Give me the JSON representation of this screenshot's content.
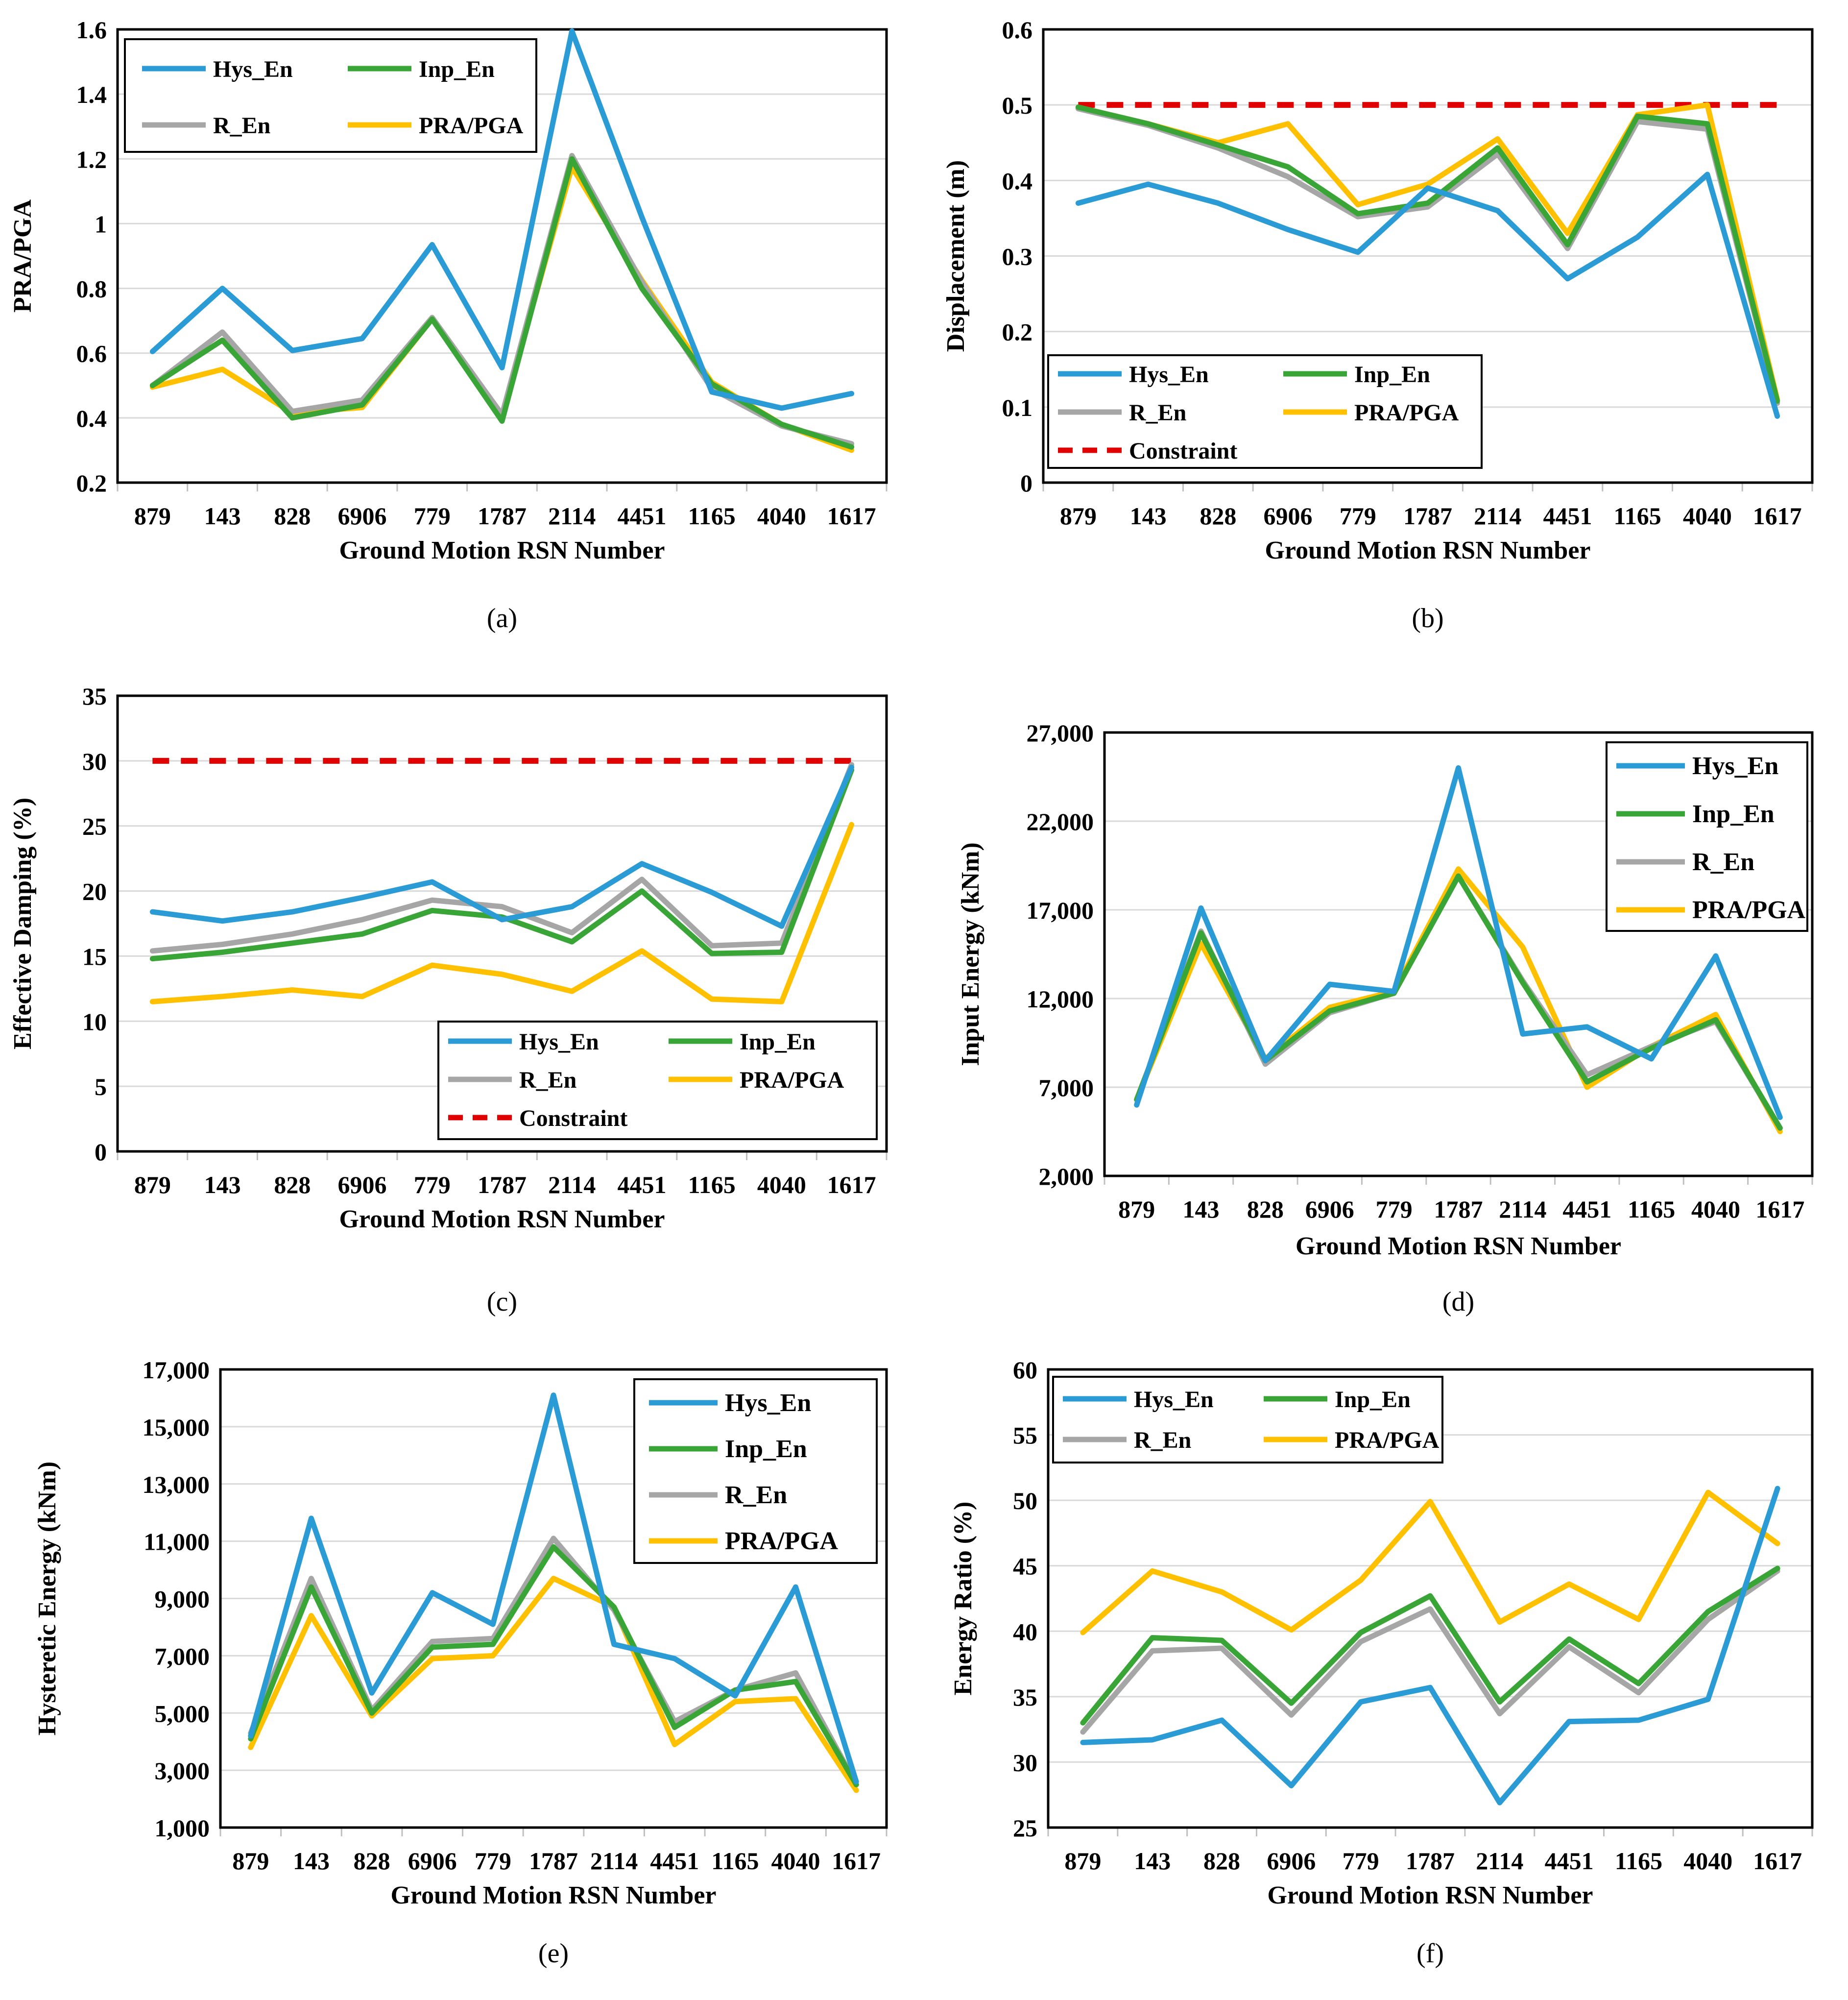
{
  "figure": {
    "categories": [
      "879",
      "143",
      "828",
      "6906",
      "779",
      "1787",
      "2114",
      "4451",
      "1165",
      "4040",
      "1617"
    ],
    "xlabel": "Ground Motion RSN Number",
    "colors": {
      "Hys_En": "#2b9bd6",
      "Inp_En": "#3aa537",
      "R_En": "#a6a6a6",
      "PRA/PGA": "#ffc000",
      "Constraint": "#e00000"
    },
    "legend_names": [
      "Hys_En",
      "Inp_En",
      "R_En",
      "PRA/PGA",
      "Constraint"
    ]
  },
  "chart_data": [
    {
      "panel": "(a)",
      "type": "line",
      "ylabel": "PRA/PGA",
      "ylim": [
        0.2,
        1.6
      ],
      "yticks": [
        0.2,
        0.4,
        0.6,
        0.8,
        1,
        1.2,
        1.4,
        1.6
      ],
      "ytick_labels": [
        "0.2",
        "0.4",
        "0.6",
        "0.8",
        "1",
        "1.2",
        "1.4",
        "1.6"
      ],
      "legend_position": "top-left",
      "series": [
        {
          "name": "Hys_En",
          "values": [
            0.605,
            0.8,
            0.608,
            0.645,
            0.935,
            0.555,
            1.595,
            1.02,
            0.48,
            0.43,
            0.475
          ]
        },
        {
          "name": "Inp_En",
          "values": [
            0.5,
            0.64,
            0.4,
            0.44,
            0.705,
            0.39,
            1.2,
            0.8,
            0.505,
            0.38,
            0.31
          ]
        },
        {
          "name": "R_En",
          "values": [
            0.5,
            0.665,
            0.42,
            0.455,
            0.71,
            0.41,
            1.21,
            0.82,
            0.49,
            0.375,
            0.32
          ]
        },
        {
          "name": "PRA/PGA",
          "values": [
            0.495,
            0.55,
            0.415,
            0.432,
            0.706,
            0.41,
            1.175,
            0.825,
            0.51,
            0.38,
            0.3
          ]
        }
      ]
    },
    {
      "panel": "(b)",
      "type": "line",
      "ylabel": "Displacement (m)",
      "ylim": [
        0,
        0.6
      ],
      "yticks": [
        0,
        0.1,
        0.2,
        0.3,
        0.4,
        0.5,
        0.6
      ],
      "ytick_labels": [
        "0",
        "0.1",
        "0.2",
        "0.3",
        "0.4",
        "0.5",
        "0.6"
      ],
      "legend_position": "bottom-left",
      "constraint": 0.5,
      "series": [
        {
          "name": "Hys_En",
          "values": [
            0.37,
            0.395,
            0.37,
            0.335,
            0.305,
            0.39,
            0.36,
            0.27,
            0.325,
            0.408,
            0.088
          ]
        },
        {
          "name": "Inp_En",
          "values": [
            0.497,
            0.475,
            0.447,
            0.418,
            0.356,
            0.37,
            0.443,
            0.315,
            0.485,
            0.475,
            0.108
          ]
        },
        {
          "name": "R_En",
          "values": [
            0.495,
            0.473,
            0.443,
            0.405,
            0.352,
            0.365,
            0.435,
            0.31,
            0.478,
            0.468,
            0.105
          ]
        },
        {
          "name": "PRA/PGA",
          "values": [
            0.497,
            0.475,
            0.45,
            0.475,
            0.368,
            0.395,
            0.455,
            0.33,
            0.487,
            0.5,
            0.11
          ]
        }
      ]
    },
    {
      "panel": "(c)",
      "type": "line",
      "ylabel": "Effective Damping (%)",
      "ylim": [
        0,
        35
      ],
      "yticks": [
        0,
        5,
        10,
        15,
        20,
        25,
        30,
        35
      ],
      "ytick_labels": [
        "0",
        "5",
        "10",
        "15",
        "20",
        "25",
        "30",
        "35"
      ],
      "legend_position": "bottom-right",
      "constraint": 30,
      "series": [
        {
          "name": "Hys_En",
          "values": [
            18.4,
            17.7,
            18.4,
            19.5,
            20.7,
            17.8,
            18.8,
            22.1,
            19.9,
            17.3,
            29.5
          ]
        },
        {
          "name": "Inp_En",
          "values": [
            14.8,
            15.3,
            16.0,
            16.7,
            18.5,
            18.0,
            16.1,
            20.0,
            15.2,
            15.3,
            29.3
          ]
        },
        {
          "name": "R_En",
          "values": [
            15.4,
            15.9,
            16.7,
            17.8,
            19.3,
            18.8,
            16.8,
            20.9,
            15.8,
            16.0,
            29.7
          ]
        },
        {
          "name": "PRA/PGA",
          "values": [
            11.5,
            11.9,
            12.4,
            11.9,
            14.3,
            13.6,
            12.3,
            15.4,
            11.7,
            11.5,
            25.1
          ]
        }
      ]
    },
    {
      "panel": "(d)",
      "type": "line",
      "ylabel": "Input Energy (kNm)",
      "ylim": [
        2000,
        27000
      ],
      "yticks": [
        2000,
        7000,
        12000,
        17000,
        22000,
        27000
      ],
      "ytick_labels": [
        "2,000",
        "7,000",
        "12,000",
        "17,000",
        "22,000",
        "27,000"
      ],
      "legend_position": "top-right",
      "series": [
        {
          "name": "Hys_En",
          "values": [
            6000,
            17100,
            8500,
            12800,
            12400,
            25000,
            10000,
            10400,
            8600,
            14400,
            5300
          ]
        },
        {
          "name": "Inp_En",
          "values": [
            6300,
            15700,
            8500,
            11300,
            12300,
            18900,
            12900,
            7300,
            9200,
            10800,
            4700
          ]
        },
        {
          "name": "R_En",
          "values": [
            6300,
            15800,
            8300,
            11200,
            12300,
            18900,
            13000,
            7700,
            9300,
            10700,
            4700
          ]
        },
        {
          "name": "PRA/PGA",
          "values": [
            6300,
            15100,
            8600,
            11500,
            12400,
            19300,
            14900,
            7000,
            9300,
            11100,
            4500
          ]
        }
      ]
    },
    {
      "panel": "(e)",
      "type": "line",
      "ylabel": "Hysteretic Energy (kNm)",
      "ylim": [
        1000,
        17000
      ],
      "yticks": [
        1000,
        3000,
        5000,
        7000,
        9000,
        11000,
        13000,
        15000,
        17000
      ],
      "ytick_labels": [
        "1,000",
        "3,000",
        "5,000",
        "7,000",
        "9,000",
        "11,000",
        "13,000",
        "15,000",
        "17,000"
      ],
      "legend_position": "top-right",
      "series": [
        {
          "name": "Hys_En",
          "values": [
            4200,
            11800,
            5700,
            9200,
            8100,
            16100,
            7400,
            6900,
            5600,
            9400,
            2600
          ]
        },
        {
          "name": "Inp_En",
          "values": [
            4100,
            9400,
            5000,
            7300,
            7400,
            10800,
            8700,
            4500,
            5800,
            6100,
            2500
          ]
        },
        {
          "name": "R_En",
          "values": [
            4300,
            9700,
            5100,
            7500,
            7600,
            11100,
            8600,
            4700,
            5800,
            6400,
            2500
          ]
        },
        {
          "name": "PRA/PGA",
          "values": [
            3800,
            8400,
            4900,
            6900,
            7000,
            9700,
            8700,
            3900,
            5400,
            5500,
            2300
          ]
        }
      ]
    },
    {
      "panel": "(f)",
      "type": "line",
      "ylabel": "Energy Ratio (%)",
      "ylim": [
        25,
        60
      ],
      "yticks": [
        25,
        30,
        35,
        40,
        45,
        50,
        55,
        60
      ],
      "ytick_labels": [
        "25",
        "30",
        "35",
        "40",
        "45",
        "50",
        "55",
        "60"
      ],
      "legend_position": "top-left",
      "series": [
        {
          "name": "Hys_En",
          "values": [
            31.5,
            31.7,
            33.2,
            28.2,
            34.6,
            35.7,
            26.9,
            33.1,
            33.2,
            34.8,
            50.9
          ]
        },
        {
          "name": "Inp_En",
          "values": [
            33.0,
            39.5,
            39.3,
            34.5,
            39.9,
            42.7,
            34.6,
            39.4,
            36.0,
            41.5,
            44.8
          ]
        },
        {
          "name": "R_En",
          "values": [
            32.3,
            38.5,
            38.7,
            33.6,
            39.2,
            41.7,
            33.7,
            38.8,
            35.3,
            40.9,
            44.6
          ]
        },
        {
          "name": "PRA/PGA",
          "values": [
            39.9,
            44.6,
            43.0,
            40.1,
            43.9,
            49.9,
            40.7,
            43.6,
            40.9,
            50.6,
            46.7
          ]
        }
      ]
    }
  ]
}
